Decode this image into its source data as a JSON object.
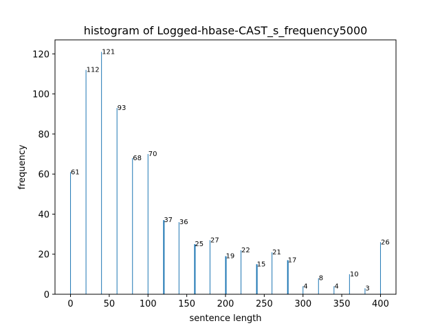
{
  "chart_data": {
    "type": "bar",
    "title": "histogram of Logged-hbase-CAST_s_frequency5000",
    "xlabel": "sentence length",
    "ylabel": "frequency",
    "xlim": [
      -20,
      420
    ],
    "ylim": [
      0,
      127
    ],
    "x_ticks": [
      0,
      50,
      100,
      150,
      200,
      250,
      300,
      350,
      400
    ],
    "y_ticks": [
      0,
      20,
      40,
      60,
      80,
      100,
      120
    ],
    "bar_color": "#1f77b4",
    "grid": false,
    "x": [
      0,
      20,
      40,
      60,
      80,
      100,
      120,
      140,
      160,
      180,
      200,
      220,
      240,
      260,
      280,
      300,
      320,
      340,
      360,
      380,
      400
    ],
    "values": [
      61,
      112,
      121,
      93,
      68,
      70,
      37,
      36,
      25,
      27,
      19,
      22,
      15,
      21,
      17,
      4,
      8,
      4,
      10,
      3,
      26
    ],
    "bar_width_units": [
      1,
      1,
      1,
      1,
      1,
      1,
      2,
      1,
      2,
      1,
      2,
      1,
      2,
      1,
      2,
      1,
      1,
      1,
      1,
      1,
      1
    ]
  }
}
